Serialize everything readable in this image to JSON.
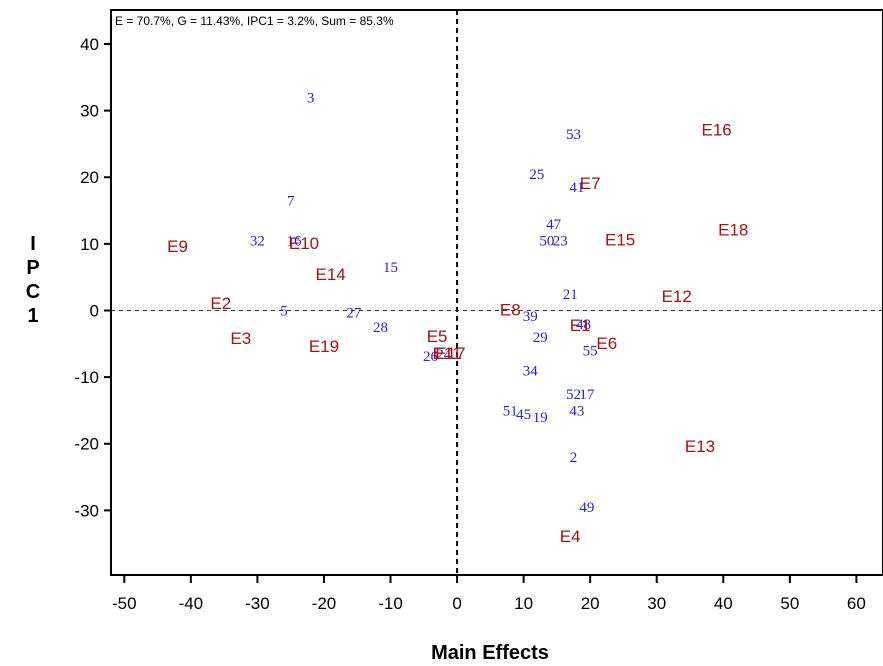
{
  "chart_data": {
    "type": "scatter",
    "title": "",
    "subtitle": "E = 70.7%, G = 11.43%, IPC1 = 3.2%, Sum = 85.3%",
    "xlabel": "Main Effects",
    "ylabel": "IPC1",
    "xlim": [
      -52,
      64
    ],
    "ylim": [
      -39.7,
      45.1
    ],
    "xticks": [
      -50,
      -40,
      -30,
      -20,
      -10,
      0,
      10,
      20,
      30,
      40,
      50,
      60
    ],
    "yticks": [
      -30,
      -20,
      -10,
      0,
      10,
      20,
      30,
      40
    ],
    "reference_lines": {
      "x": 0,
      "y": 0
    },
    "grid": false,
    "colors": {
      "genotypes": "#2222ee",
      "environments": "#aa1111"
    },
    "series": [
      {
        "name": "Genotypes",
        "points": [
          {
            "label": "3",
            "x": -22,
            "y": 32
          },
          {
            "label": "7",
            "x": -25,
            "y": 16.5
          },
          {
            "label": "32",
            "x": -30,
            "y": 10.5
          },
          {
            "label": "16",
            "x": -24.5,
            "y": 10.5
          },
          {
            "label": "15",
            "x": -10,
            "y": 6.5
          },
          {
            "label": "5",
            "x": -26,
            "y": 0
          },
          {
            "label": "27",
            "x": -15.5,
            "y": -0.3
          },
          {
            "label": "28",
            "x": -11.5,
            "y": -2.5
          },
          {
            "label": "26",
            "x": -4,
            "y": -6.8
          },
          {
            "label": "24",
            "x": -2,
            "y": -6.5
          },
          {
            "label": "53",
            "x": 17.5,
            "y": 26.5
          },
          {
            "label": "25",
            "x": 12,
            "y": 20.5
          },
          {
            "label": "41",
            "x": 18,
            "y": 18.5
          },
          {
            "label": "47",
            "x": 14.5,
            "y": 13
          },
          {
            "label": "50",
            "x": 13.5,
            "y": 10.5
          },
          {
            "label": "23",
            "x": 15.5,
            "y": 10.5
          },
          {
            "label": "21",
            "x": 17,
            "y": 2.5
          },
          {
            "label": "39",
            "x": 11,
            "y": -0.8
          },
          {
            "label": "48",
            "x": 19,
            "y": -2
          },
          {
            "label": "29",
            "x": 12.5,
            "y": -4
          },
          {
            "label": "55",
            "x": 20,
            "y": -6
          },
          {
            "label": "34",
            "x": 11,
            "y": -9
          },
          {
            "label": "52",
            "x": 17.5,
            "y": -12.5
          },
          {
            "label": "17",
            "x": 19.5,
            "y": -12.5
          },
          {
            "label": "43",
            "x": 18,
            "y": -15
          },
          {
            "label": "51",
            "x": 8,
            "y": -15
          },
          {
            "label": "45",
            "x": 10,
            "y": -15.5
          },
          {
            "label": "19",
            "x": 12.5,
            "y": -16
          },
          {
            "label": "2",
            "x": 17.5,
            "y": -22
          },
          {
            "label": "49",
            "x": 19.5,
            "y": -29.5
          }
        ]
      },
      {
        "name": "Environments",
        "points": [
          {
            "label": "E16",
            "x": 39,
            "y": 27
          },
          {
            "label": "E7",
            "x": 20,
            "y": 19
          },
          {
            "label": "E15",
            "x": 24.5,
            "y": 10.5
          },
          {
            "label": "E18",
            "x": 41.5,
            "y": 12
          },
          {
            "label": "E9",
            "x": -42,
            "y": 9.5
          },
          {
            "label": "E10",
            "x": -23,
            "y": 10
          },
          {
            "label": "E14",
            "x": -19,
            "y": 5.3
          },
          {
            "label": "E2",
            "x": -35.5,
            "y": 1
          },
          {
            "label": "E3",
            "x": -32.5,
            "y": -4.3
          },
          {
            "label": "E8",
            "x": 8,
            "y": 0
          },
          {
            "label": "E12",
            "x": 33,
            "y": 2
          },
          {
            "label": "E1",
            "x": 18.5,
            "y": -2.3
          },
          {
            "label": "E6",
            "x": 22.5,
            "y": -5
          },
          {
            "label": "E5",
            "x": -3,
            "y": -4
          },
          {
            "label": "E11",
            "x": -1.5,
            "y": -6.5
          },
          {
            "label": "E17",
            "x": -1,
            "y": -6.5
          },
          {
            "label": "E19",
            "x": -20,
            "y": -5.5
          },
          {
            "label": "E13",
            "x": 36.5,
            "y": -20.5
          },
          {
            "label": "E4",
            "x": 17,
            "y": -34
          }
        ]
      }
    ]
  }
}
